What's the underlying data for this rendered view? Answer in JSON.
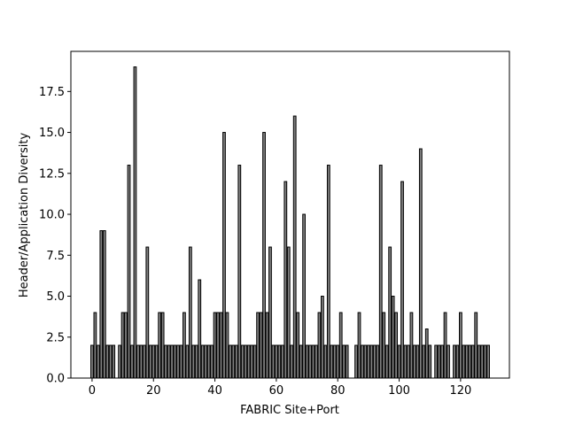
{
  "chart_data": {
    "type": "bar",
    "xlabel": "FABRIC Site+Port",
    "ylabel": "Header/Application Diversity",
    "x": [
      0,
      1,
      2,
      3,
      4,
      5,
      6,
      7,
      9,
      10,
      11,
      12,
      13,
      14,
      15,
      16,
      17,
      18,
      19,
      20,
      21,
      22,
      23,
      24,
      25,
      26,
      27,
      28,
      29,
      30,
      31,
      32,
      33,
      34,
      35,
      36,
      37,
      38,
      39,
      40,
      41,
      42,
      43,
      44,
      45,
      46,
      47,
      48,
      49,
      50,
      51,
      52,
      53,
      54,
      55,
      56,
      57,
      58,
      59,
      60,
      61,
      62,
      63,
      64,
      65,
      66,
      67,
      68,
      69,
      70,
      71,
      72,
      73,
      74,
      75,
      76,
      77,
      78,
      79,
      80,
      81,
      82,
      83,
      86,
      87,
      88,
      89,
      90,
      91,
      92,
      93,
      94,
      95,
      96,
      97,
      98,
      99,
      100,
      101,
      102,
      103,
      104,
      105,
      106,
      107,
      108,
      109,
      110,
      112,
      113,
      114,
      115,
      116,
      118,
      119,
      120,
      121,
      122,
      123,
      124,
      125,
      126,
      127,
      128,
      129
    ],
    "values": [
      2,
      4,
      2,
      9,
      9,
      2,
      2,
      2,
      2,
      4,
      4,
      13,
      2,
      19,
      2,
      2,
      2,
      8,
      2,
      2,
      2,
      4,
      4,
      2,
      2,
      2,
      2,
      2,
      2,
      4,
      2,
      8,
      2,
      2,
      6,
      2,
      2,
      2,
      2,
      4,
      4,
      4,
      15,
      4,
      2,
      2,
      2,
      13,
      2,
      2,
      2,
      2,
      2,
      4,
      4,
      15,
      4,
      8,
      2,
      2,
      2,
      2,
      12,
      8,
      2,
      16,
      4,
      2,
      10,
      2,
      2,
      2,
      2,
      4,
      5,
      2,
      13,
      2,
      2,
      2,
      4,
      2,
      2,
      2,
      4,
      2,
      2,
      2,
      2,
      2,
      2,
      13,
      4,
      2,
      8,
      5,
      4,
      2,
      12,
      2,
      2,
      4,
      2,
      2,
      14,
      2,
      3,
      2,
      2,
      2,
      2,
      4,
      2,
      2,
      2,
      4,
      2,
      2,
      2,
      2,
      4,
      2,
      2,
      2,
      2
    ],
    "color": "#808080",
    "edgecolor": "#000000",
    "bar_width": 0.8,
    "xlim": [
      -6.9,
      135.9
    ],
    "ylim": [
      0,
      19.95
    ],
    "xticks": [
      0,
      20,
      40,
      60,
      80,
      100,
      120
    ],
    "yticks": [
      {
        "value": 0,
        "label": "0.0"
      },
      {
        "value": 2.5,
        "label": "2.5"
      },
      {
        "value": 5,
        "label": "5.0"
      },
      {
        "value": 7.5,
        "label": "7.5"
      },
      {
        "value": 10,
        "label": "10.0"
      },
      {
        "value": 12.5,
        "label": "12.5"
      },
      {
        "value": 15,
        "label": "15.0"
      },
      {
        "value": 17.5,
        "label": "17.5"
      }
    ]
  }
}
